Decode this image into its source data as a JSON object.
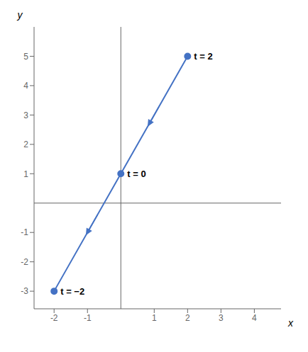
{
  "chart_data": {
    "type": "line",
    "x": [
      -2,
      0,
      2
    ],
    "values": [
      -3,
      1,
      5
    ],
    "point_labels": [
      "t = −2",
      "t = 0",
      "t = 2"
    ],
    "color": "#4472c4",
    "marker": "circle",
    "xlim": [
      -2.6,
      4.8
    ],
    "ylim": [
      -3.6,
      6.0
    ],
    "xticks": [
      -2,
      -1,
      1,
      2,
      3,
      4
    ],
    "yticks": [
      -3,
      -2,
      -1,
      1,
      2,
      3,
      4,
      5
    ],
    "x_label": "x",
    "y_label": "y",
    "grid": false,
    "arrows": [
      {
        "from": [
          1.15,
          3.3
        ],
        "to": [
          0.8,
          2.6
        ]
      },
      {
        "from": [
          -0.7,
          -0.4
        ],
        "to": [
          -1.05,
          -1.1
        ]
      }
    ]
  }
}
